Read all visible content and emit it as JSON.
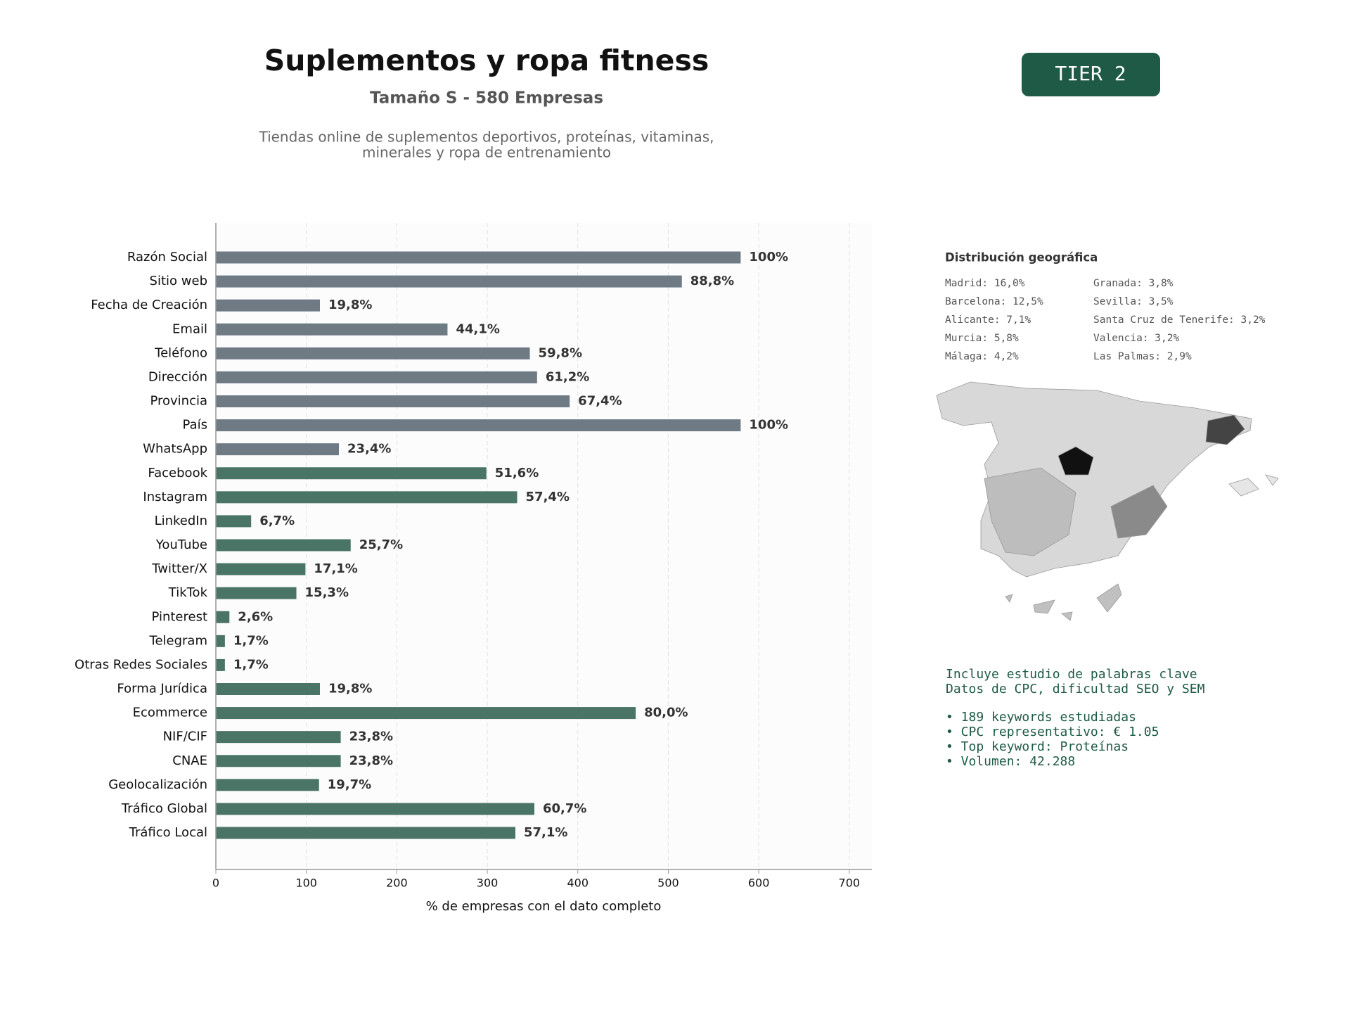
{
  "chart_data": {
    "type": "barh",
    "title": "Suplementos y ropa fitness",
    "subtitle": "Tamaño S - 580 Empresas",
    "description": [
      "Tiendas online de suplementos deportivos, proteínas, vitaminas,",
      "minerales y ropa de entrenamiento"
    ],
    "xlabel": "% de empresas con el dato completo",
    "categories": [
      "Razón Social",
      "Sitio web",
      "Fecha de Creación",
      "Email",
      "Teléfono",
      "Dirección",
      "Provincia",
      "País",
      "WhatsApp",
      "Facebook",
      "Instagram",
      "LinkedIn",
      "YouTube",
      "Twitter/X",
      "TikTok",
      "Pinterest",
      "Telegram",
      "Otras Redes Sociales",
      "Forma Jurídica",
      "Ecommerce",
      "NIF/CIF",
      "CNAE",
      "Geolocalización",
      "Tráfico Global",
      "Tráfico Local"
    ],
    "values": [
      580,
      515,
      115,
      256,
      347,
      355,
      391,
      580,
      136,
      299,
      333,
      39,
      149,
      99,
      89,
      15,
      10,
      10,
      115,
      464,
      138,
      138,
      114,
      352,
      331
    ],
    "value_labels": [
      "100%",
      "88,8%",
      "19,8%",
      "44,1%",
      "59,8%",
      "61,2%",
      "67,4%",
      "100%",
      "23,4%",
      "51,6%",
      "57,4%",
      "6,7%",
      "25,7%",
      "17,1%",
      "15,3%",
      "2,6%",
      "1,7%",
      "1,7%",
      "19,8%",
      "80,0%",
      "23,8%",
      "23,8%",
      "19,7%",
      "60,7%",
      "57,1%"
    ],
    "colors": [
      "#6e7a84",
      "#6e7a84",
      "#6e7a84",
      "#6e7a84",
      "#6e7a84",
      "#6e7a84",
      "#6e7a84",
      "#6e7a84",
      "#6e7a84",
      "#4a7566",
      "#4a7566",
      "#4a7566",
      "#4a7566",
      "#4a7566",
      "#4a7566",
      "#4a7566",
      "#4a7566",
      "#4a7566",
      "#4a7566",
      "#4a7566",
      "#4a7566",
      "#4a7566",
      "#4a7566",
      "#4a7566",
      "#4a7566"
    ],
    "xlim": [
      0,
      725
    ],
    "xticks": [
      0,
      100,
      200,
      300,
      400,
      500,
      600,
      700
    ],
    "grid": true
  },
  "badge": "TIER 2",
  "geo": {
    "title": "Distribución geográfica",
    "items": [
      "Madrid: 16,0%",
      "Barcelona: 12,5%",
      "Alicante: 7,1%",
      "Murcia: 5,8%",
      "Málaga: 4,2%",
      "Granada: 3,8%",
      "Sevilla: 3,5%",
      "Santa Cruz de Tenerife: 3,2%",
      "Valencia: 3,2%",
      "Las Palmas: 2,9%"
    ]
  },
  "keywords": {
    "lines": [
      "Incluye estudio de palabras clave",
      "Datos de CPC, dificultad SEO y SEM"
    ],
    "bullets": [
      "• 189 keywords estudiadas",
      "• CPC representativo: € 1.05",
      "• Top keyword: Proteínas",
      "• Volumen: 42.288"
    ]
  }
}
